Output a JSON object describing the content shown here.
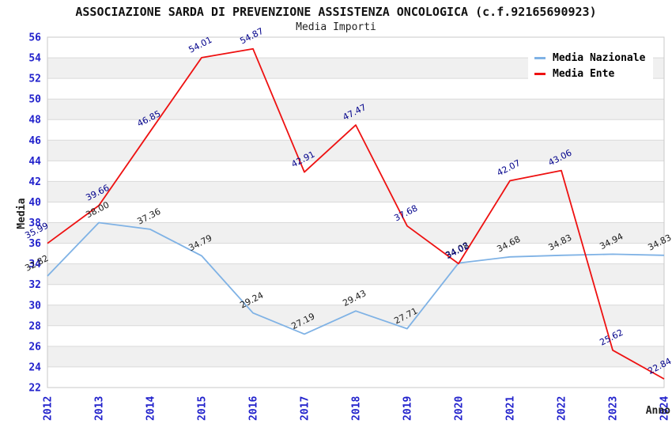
{
  "chart_data": {
    "type": "line",
    "title": "ASSOCIAZIONE SARDA DI PREVENZIONE ASSISTENZA ONCOLOGICA (c.f.92165690923)",
    "subtitle": "Media Importi",
    "xlabel": "Anno",
    "ylabel": "Media",
    "ylim": [
      22,
      56
    ],
    "ytick_step": 2,
    "categories": [
      "2012",
      "2013",
      "2014",
      "2015",
      "2016",
      "2017",
      "2018",
      "2019",
      "2020",
      "2021",
      "2022",
      "2023",
      "2024"
    ],
    "series": [
      {
        "name": "Media Nazionale",
        "color": "#7fb2e5",
        "label_color": "#1a1a1a",
        "values": [
          32.82,
          38.0,
          37.36,
          34.79,
          29.24,
          27.19,
          29.43,
          27.71,
          34.08,
          34.68,
          34.83,
          34.94,
          34.83
        ]
      },
      {
        "name": "Media Ente",
        "color": "#ee1111",
        "label_color": "#00008b",
        "values": [
          35.99,
          39.66,
          46.85,
          54.01,
          54.87,
          42.91,
          47.47,
          37.68,
          34.02,
          42.07,
          43.06,
          25.62,
          22.84
        ]
      }
    ],
    "legend_position": "top-right",
    "grid": "horizontal-bands",
    "style": {
      "band_colors": [
        "#ffffff",
        "#f0f0f0"
      ],
      "gridline_color": "#d9d9d9",
      "border_color": "#c9c9c9",
      "tick_label_color": "#2222cc"
    }
  }
}
